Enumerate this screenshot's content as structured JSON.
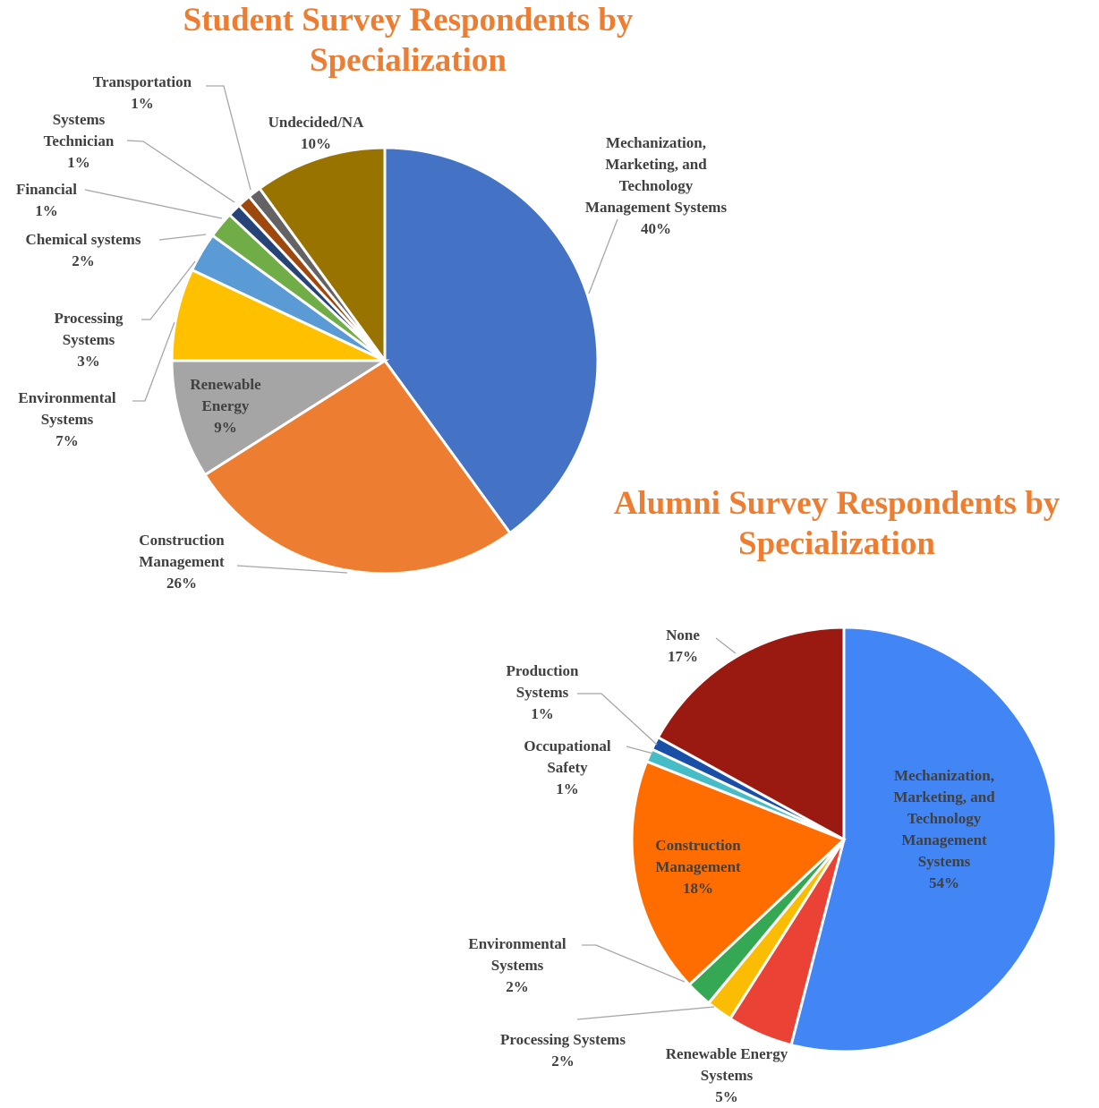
{
  "chart_data": [
    {
      "type": "pie",
      "title": "Student Survey Respondents by Specialization",
      "categories": [
        "Mechanization, Marketing, and Technology Management Systems",
        "Construction Management",
        "Renewable Energy",
        "Environmental Systems",
        "Processing Systems",
        "Chemical systems",
        "Financial",
        "Systems Technician",
        "Transportation",
        "Undecided/NA"
      ],
      "values": [
        40,
        26,
        9,
        7,
        3,
        2,
        1,
        1,
        1,
        10
      ],
      "value_labels": [
        "40%",
        "26%",
        "9%",
        "7%",
        "3%",
        "2%",
        "1%",
        "1%",
        "1%",
        "10%"
      ],
      "colors": [
        "#4472c4",
        "#ed7d31",
        "#a5a5a5",
        "#ffc000",
        "#5b9bd5",
        "#70ad47",
        "#264478",
        "#9e480e",
        "#636363",
        "#997300"
      ]
    },
    {
      "type": "pie",
      "title": "Alumni Survey Respondents by Specialization",
      "categories": [
        "Mechanization, Marketing, and Technology Management Systems",
        "Renewable Energy Systems",
        "Processing Systems",
        "Environmental Systems",
        "Construction Management",
        "Occupational Safety",
        "Production Systems",
        "None"
      ],
      "values": [
        54,
        5,
        2,
        2,
        18,
        1,
        1,
        17
      ],
      "value_labels": [
        "54%",
        "5%",
        "2%",
        "2%",
        "18%",
        "1%",
        "1%",
        "17%"
      ],
      "colors": [
        "#4285f4",
        "#ea4335",
        "#fbbc04",
        "#34a853",
        "#ff6d01",
        "#46bdc6",
        "#1a4fa8",
        "#9a1a12"
      ]
    }
  ]
}
